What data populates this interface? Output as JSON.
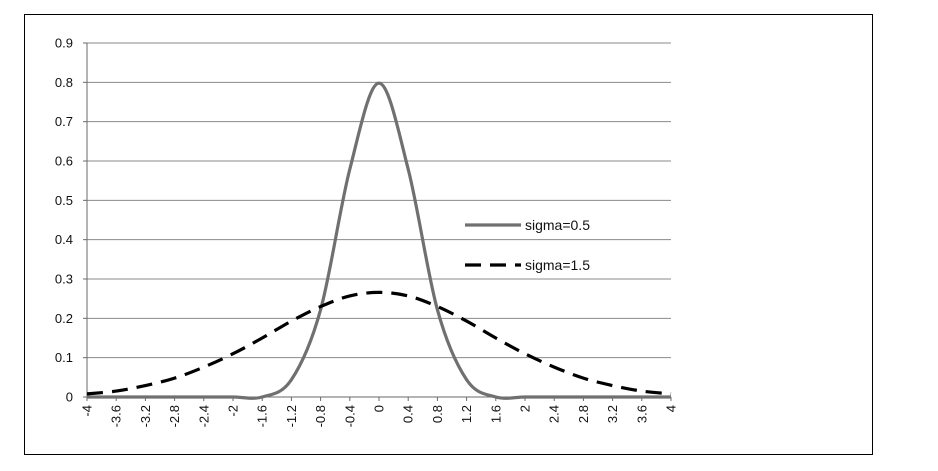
{
  "chart_data": {
    "type": "line",
    "title": "",
    "xlabel": "",
    "ylabel": "",
    "ylim": [
      0,
      0.9
    ],
    "y_ticks": [
      "0",
      "0.1",
      "0.2",
      "0.3",
      "0.4",
      "0.5",
      "0.6",
      "0.7",
      "0.8",
      "0.9"
    ],
    "x_tick_labels": [
      "-4",
      "-3.6",
      "-3.2",
      "-2.8",
      "-2.4",
      "-2",
      "-1.6",
      "-1.2",
      "-0.8",
      "-0.4",
      "0",
      "0.4",
      "0.8",
      "1.2",
      "1.6",
      "2",
      "2.4",
      "2.8",
      "3.2",
      "3.6",
      "4"
    ],
    "grid": "horizontal",
    "legend_position": "right",
    "x": [
      -4,
      -3.6,
      -3.2,
      -2.8,
      -2.4,
      -2,
      -1.6,
      -1.2,
      -0.8,
      -0.4,
      0,
      0.4,
      0.8,
      1.2,
      1.6,
      2,
      2.4,
      2.8,
      3.2,
      3.6,
      4
    ],
    "series": [
      {
        "name": "sigma=0.5",
        "style": "solid",
        "color": "#707070",
        "values": [
          0.0,
          0.0,
          0.0,
          0.0,
          0.0,
          0.0,
          0.0,
          0.044,
          0.222,
          0.579,
          0.798,
          0.579,
          0.222,
          0.044,
          0.0,
          0.0,
          0.0,
          0.0,
          0.0,
          0.0,
          0.0
        ]
      },
      {
        "name": "sigma=1.5",
        "style": "dashed",
        "color": "#000000",
        "values": [
          0.008,
          0.015,
          0.029,
          0.048,
          0.076,
          0.11,
          0.15,
          0.193,
          0.23,
          0.257,
          0.266,
          0.257,
          0.23,
          0.193,
          0.15,
          0.11,
          0.076,
          0.048,
          0.029,
          0.015,
          0.008
        ]
      }
    ]
  }
}
